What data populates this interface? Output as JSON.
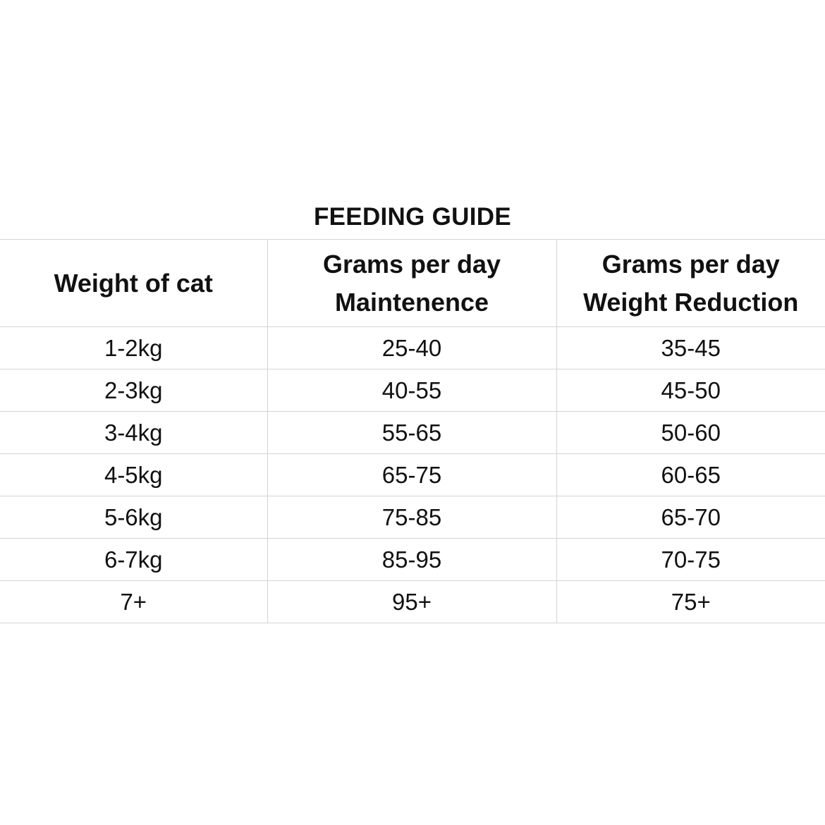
{
  "title": "FEEDING GUIDE",
  "table": {
    "headers": [
      [
        "Weight of cat"
      ],
      [
        "Grams per day",
        "Maintenence"
      ],
      [
        "Grams per day",
        "Weight Reduction"
      ]
    ],
    "rows": [
      [
        "1-2kg",
        "25-40",
        "35-45"
      ],
      [
        "2-3kg",
        "40-55",
        "45-50"
      ],
      [
        "3-4kg",
        "55-65",
        "50-60"
      ],
      [
        "4-5kg",
        "65-75",
        "60-65"
      ],
      [
        "5-6kg",
        "75-85",
        "65-70"
      ],
      [
        "6-7kg",
        "85-95",
        "70-75"
      ],
      [
        "7+",
        "95+",
        "75+"
      ]
    ]
  }
}
